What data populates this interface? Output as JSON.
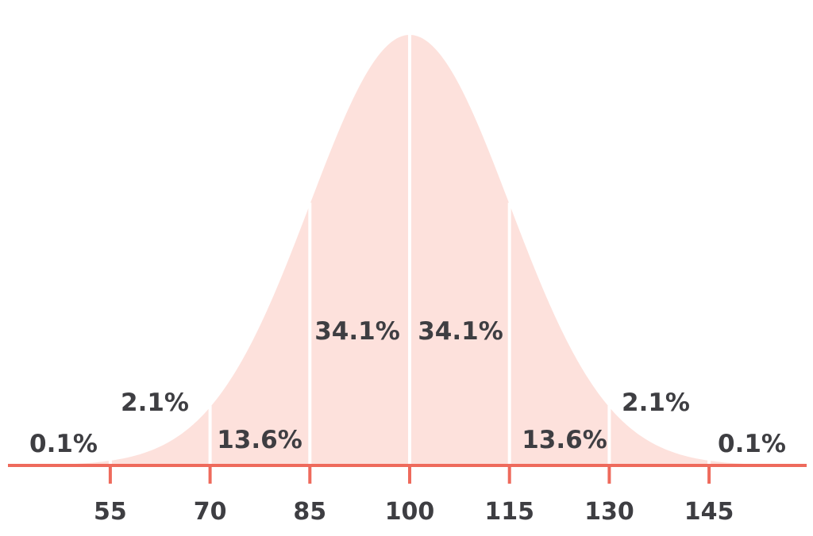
{
  "chart_data": {
    "type": "area",
    "distribution": "normal",
    "mean": 100,
    "sd": 15,
    "xlim": [
      40,
      160
    ],
    "x_ticks": [
      55,
      70,
      85,
      100,
      115,
      130,
      145
    ],
    "tick_labels": [
      "55",
      "70",
      "85",
      "100",
      "115",
      "130",
      "145"
    ],
    "bands": [
      {
        "from": 40,
        "to": 55,
        "percent": 0.1,
        "label": "0.1%"
      },
      {
        "from": 55,
        "to": 70,
        "percent": 2.1,
        "label": "2.1%"
      },
      {
        "from": 70,
        "to": 85,
        "percent": 13.6,
        "label": "13.6%"
      },
      {
        "from": 85,
        "to": 100,
        "percent": 34.1,
        "label": "34.1%"
      },
      {
        "from": 100,
        "to": 115,
        "percent": 34.1,
        "label": "34.1%"
      },
      {
        "from": 115,
        "to": 130,
        "percent": 13.6,
        "label": "13.6%"
      },
      {
        "from": 130,
        "to": 145,
        "percent": 2.1,
        "label": "2.1%"
      },
      {
        "from": 145,
        "to": 160,
        "percent": 0.1,
        "label": "0.1%"
      }
    ],
    "title": "",
    "xlabel": "",
    "ylabel": "",
    "grid": false,
    "legend": "none",
    "colors": {
      "fill": "#fde1dc",
      "axis": "#ee6a5c",
      "divider": "#ffffff",
      "text": "#3e3e42"
    }
  }
}
